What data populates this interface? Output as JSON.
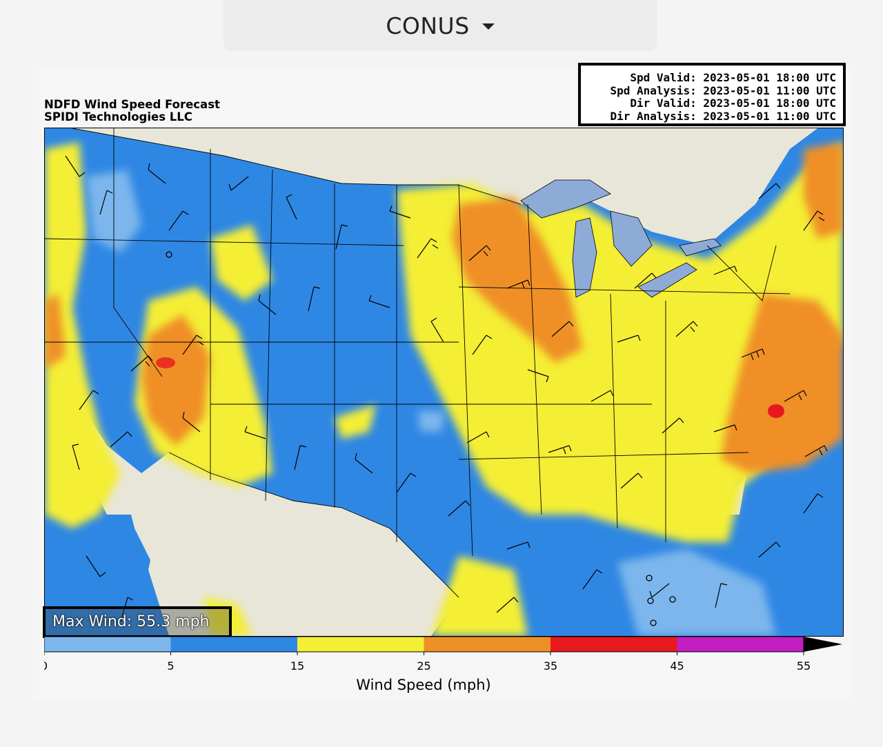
{
  "region_selector": {
    "label": "CONUS"
  },
  "map": {
    "title_line1": "NDFD Wind Speed Forecast",
    "title_line2": "SPIDI Technologies LLC",
    "valid_lines": [
      "Spd Valid: 2023-05-01 18:00 UTC",
      "Spd Analysis: 2023-05-01 11:00 UTC",
      "Dir Valid: 2023-05-01 18:00 UTC",
      "Dir Analysis: 2023-05-01 11:00 UTC"
    ],
    "max_wind": "Max Wind: 55.3 mph"
  },
  "colorbar": {
    "label": "Wind Speed (mph)",
    "ticks": [
      "0",
      "5",
      "15",
      "25",
      "35",
      "45",
      "55"
    ],
    "bins": [
      {
        "from": 0,
        "to": 5,
        "color": "#7cb6ec"
      },
      {
        "from": 5,
        "to": 15,
        "color": "#2f87e4"
      },
      {
        "from": 15,
        "to": 25,
        "color": "#f4ee34"
      },
      {
        "from": 25,
        "to": 35,
        "color": "#ef8f27"
      },
      {
        "from": 35,
        "to": 45,
        "color": "#e7191e"
      },
      {
        "from": 45,
        "to": 55,
        "color": "#c21ec2"
      }
    ],
    "extend": "max"
  },
  "colors": {
    "land_outside": "#e8e6d8",
    "water": "#8eabd8",
    "low": "#2f87e4",
    "calm": "#7cb6ec",
    "moderate": "#f4ee34",
    "strong": "#ef8f27",
    "severe": "#e7191e"
  }
}
